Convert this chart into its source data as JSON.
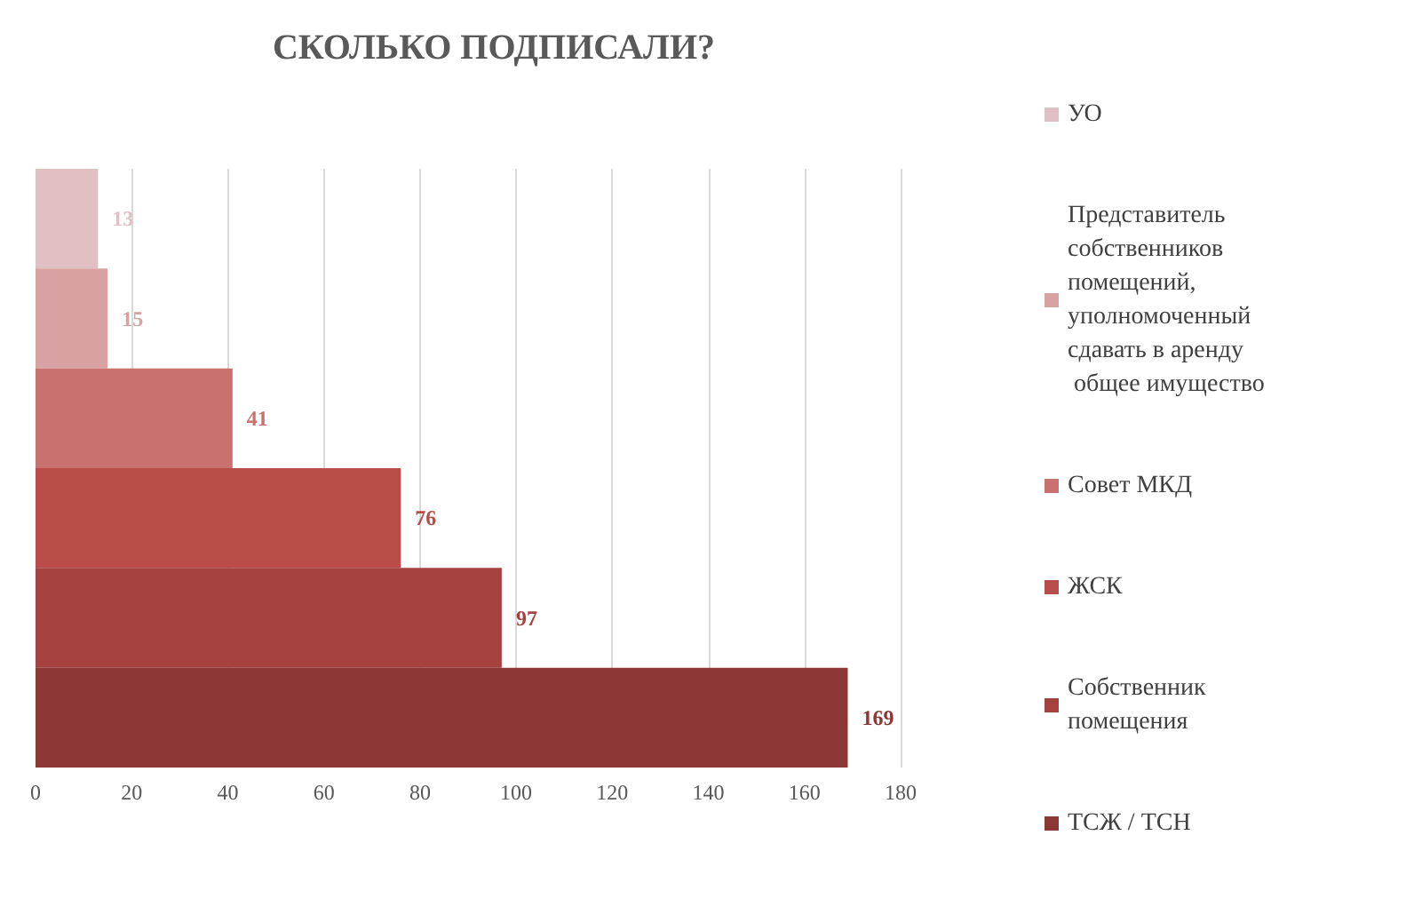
{
  "chart_data": {
    "type": "bar",
    "orientation": "horizontal",
    "title": "СКОЛЬКО ПОДПИСАЛИ?",
    "categories": [
      null,
      null,
      null,
      null,
      null,
      null
    ],
    "series": [
      {
        "name": "УО",
        "color": "#e0c0c2",
        "values": [
          13,
          null,
          null,
          null,
          null,
          null
        ]
      },
      {
        "name": "Представитель собственников помещений, уполномоченный сдавать в аренду общее имущество",
        "color": "#d8a1a2",
        "values": [
          null,
          15,
          null,
          null,
          null,
          null
        ]
      },
      {
        "name": "Совет МКД",
        "color": "#c8716f",
        "values": [
          null,
          null,
          41,
          null,
          null,
          null
        ]
      },
      {
        "name": "ЖСК",
        "color": "#b84d4a",
        "values": [
          null,
          null,
          null,
          76,
          null,
          null
        ]
      },
      {
        "name": "Собственник помещения",
        "color": "#a5423f",
        "values": [
          null,
          null,
          null,
          null,
          97,
          null
        ]
      },
      {
        "name": "ТСЖ / ТСН",
        "color": "#8b3735",
        "values": [
          null,
          null,
          null,
          null,
          null,
          169
        ]
      }
    ],
    "xlim": [
      0,
      180
    ],
    "xticks": [
      0,
      20,
      40,
      60,
      80,
      100,
      120,
      140,
      160,
      180
    ],
    "grid": "x",
    "legend": "right",
    "data_labels": true
  }
}
